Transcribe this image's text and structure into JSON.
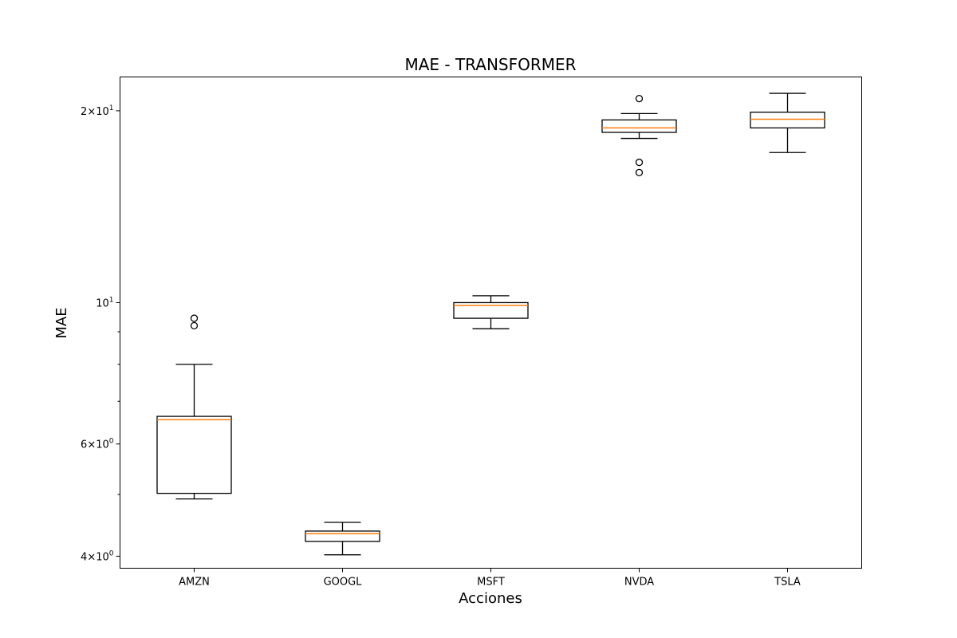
{
  "chart_data": {
    "type": "box",
    "title": "MAE - TRANSFORMER",
    "xlabel": "Acciones",
    "ylabel": "MAE",
    "yscale": "log",
    "ylim": [
      3.83,
      22.6
    ],
    "yticks": [
      {
        "value": 4,
        "mantissa": "4",
        "exponent": "0",
        "kind": "mantissa"
      },
      {
        "value": 6,
        "mantissa": "6",
        "exponent": "0",
        "kind": "mantissa"
      },
      {
        "value": 10,
        "mantissa": "",
        "exponent": "1",
        "kind": "pow"
      },
      {
        "value": 20,
        "mantissa": "2",
        "exponent": "1",
        "kind": "mantissa"
      }
    ],
    "yminor": [
      5,
      7,
      8,
      9,
      30
    ],
    "grid": false,
    "legend": "none",
    "categories": [
      "AMZN",
      "GOOGL",
      "MSFT",
      "NVDA",
      "TSLA"
    ],
    "boxes": [
      {
        "whisker_low": 4.92,
        "q1": 5.02,
        "median": 6.55,
        "q3": 6.63,
        "whisker_high": 8.0,
        "outliers": [
          9.2,
          9.45
        ]
      },
      {
        "whisker_low": 4.02,
        "q1": 4.22,
        "median": 4.34,
        "q3": 4.38,
        "whisker_high": 4.52,
        "outliers": []
      },
      {
        "whisker_low": 9.1,
        "q1": 9.45,
        "median": 9.9,
        "q3": 10.0,
        "whisker_high": 10.25,
        "outliers": []
      },
      {
        "whisker_low": 18.1,
        "q1": 18.5,
        "median": 18.8,
        "q3": 19.35,
        "whisker_high": 19.8,
        "outliers": [
          16.6,
          16.0,
          20.9
        ]
      },
      {
        "whisker_low": 17.2,
        "q1": 18.8,
        "median": 19.4,
        "q3": 19.9,
        "whisker_high": 21.3,
        "outliers": []
      }
    ],
    "colors": {
      "median": "#ff7f0e",
      "box": "#000000"
    }
  }
}
